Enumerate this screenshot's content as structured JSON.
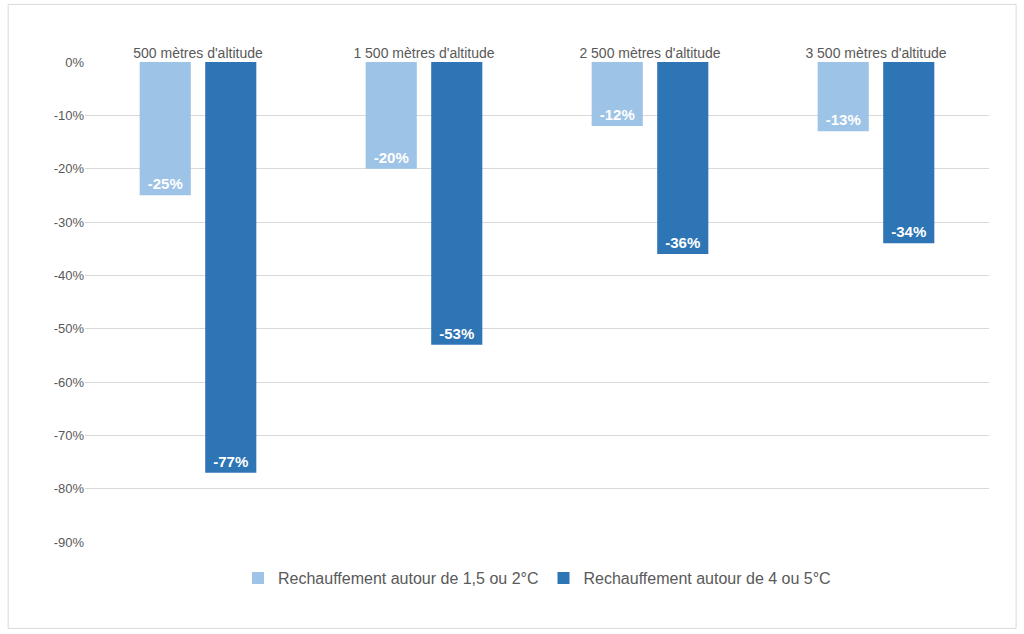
{
  "chart_data": {
    "type": "bar",
    "categories": [
      "500 mètres d'altitude",
      "1 500 mètres d'altitude",
      "2 500 mètres d'altitude",
      "3 500 mètres d'altitude"
    ],
    "series": [
      {
        "name": "Rechauffement autour de 1,5 ou 2°C",
        "color": "#9dc3e6",
        "values": [
          -25,
          -20,
          -12,
          -13
        ],
        "value_labels": [
          "-25%",
          "-20%",
          "-12%",
          "-13%"
        ]
      },
      {
        "name": "Rechauffement autour de 4 ou 5°C",
        "color": "#2e75b6",
        "values": [
          -77,
          -53,
          -36,
          -34
        ],
        "value_labels": [
          "-77%",
          "-53%",
          "-36%",
          "-34%"
        ]
      }
    ],
    "ylim": [
      -90,
      0
    ],
    "yticks": [
      {
        "value": 0,
        "label": "0%"
      },
      {
        "value": -10,
        "label": "-10%"
      },
      {
        "value": -20,
        "label": "-20%"
      },
      {
        "value": -30,
        "label": "-30%"
      },
      {
        "value": -40,
        "label": "-40%"
      },
      {
        "value": -50,
        "label": "-50%"
      },
      {
        "value": -60,
        "label": "-60%"
      },
      {
        "value": -70,
        "label": "-70%"
      },
      {
        "value": -80,
        "label": "-80%"
      },
      {
        "value": -90,
        "label": "-90%"
      }
    ],
    "grid": true,
    "legend": "bottom",
    "data_labels": true
  }
}
